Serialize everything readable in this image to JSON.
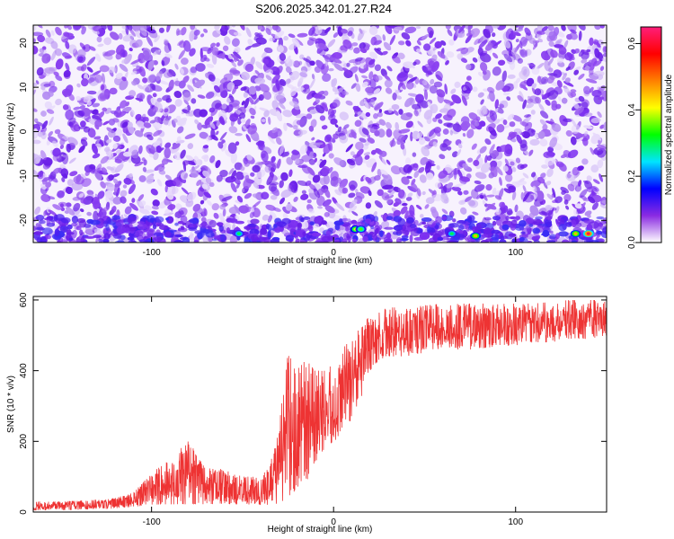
{
  "title": "S206.2025.342.01.27.R24",
  "chart_data": [
    {
      "type": "heatmap",
      "xlabel": "Height of straight line (km)",
      "ylabel": "Frequency (Hz)",
      "xlim": [
        -165,
        150
      ],
      "ylim": [
        -25,
        24
      ],
      "xticks": [
        -100,
        0,
        100
      ],
      "yticks": [
        -20,
        -10,
        0,
        10,
        20
      ],
      "grid": false,
      "colorbar": {
        "label": "Normalized spectral amplitude",
        "range": [
          0,
          0.65
        ],
        "ticks": [
          0.0,
          0.2,
          0.4,
          0.6
        ],
        "colors": [
          "#ffffff",
          "#8a2be2",
          "#0000ff",
          "#00e5ff",
          "#00ff00",
          "#ffff00",
          "#ff8000",
          "#ff0000",
          "#ff1f7a"
        ]
      },
      "peaks": [
        {
          "x": -52,
          "y": -23,
          "value": 0.3
        },
        {
          "x": 12,
          "y": -22,
          "value": 0.4
        },
        {
          "x": 15,
          "y": -22,
          "value": 0.35
        },
        {
          "x": 65,
          "y": -23,
          "value": 0.3
        },
        {
          "x": 78,
          "y": -23.5,
          "value": 0.45
        },
        {
          "x": 133,
          "y": -23,
          "value": 0.45
        },
        {
          "x": 140,
          "y": -23,
          "value": 0.62
        }
      ]
    },
    {
      "type": "line",
      "xlabel": "Height of straight line (km)",
      "ylabel": "SNR (10 * v/v)",
      "xlim": [
        -165,
        150
      ],
      "ylim": [
        0,
        610
      ],
      "xticks": [
        -100,
        0,
        100
      ],
      "yticks": [
        0,
        200,
        400,
        600
      ],
      "grid": false,
      "color": "#ee3333",
      "envelope": {
        "x": [
          -165,
          -150,
          -130,
          -120,
          -110,
          -100,
          -90,
          -80,
          -70,
          -60,
          -50,
          -40,
          -35,
          -30,
          -25,
          -20,
          -15,
          -10,
          -5,
          0,
          5,
          10,
          15,
          20,
          25,
          30,
          40,
          50,
          60,
          70,
          80,
          90,
          100,
          110,
          120,
          130,
          140,
          150
        ],
        "low": [
          5,
          5,
          8,
          10,
          15,
          20,
          22,
          22,
          22,
          22,
          22,
          20,
          20,
          25,
          40,
          60,
          80,
          140,
          180,
          200,
          220,
          260,
          320,
          400,
          430,
          440,
          440,
          450,
          460,
          460,
          460,
          470,
          470,
          480,
          480,
          490,
          490,
          500
        ],
        "high": [
          30,
          30,
          35,
          40,
          55,
          110,
          150,
          200,
          130,
          120,
          100,
          100,
          130,
          250,
          450,
          420,
          430,
          400,
          400,
          420,
          460,
          500,
          520,
          560,
          570,
          580,
          580,
          585,
          590,
          590,
          590,
          590,
          590,
          590,
          595,
          600,
          600,
          600
        ]
      }
    }
  ]
}
